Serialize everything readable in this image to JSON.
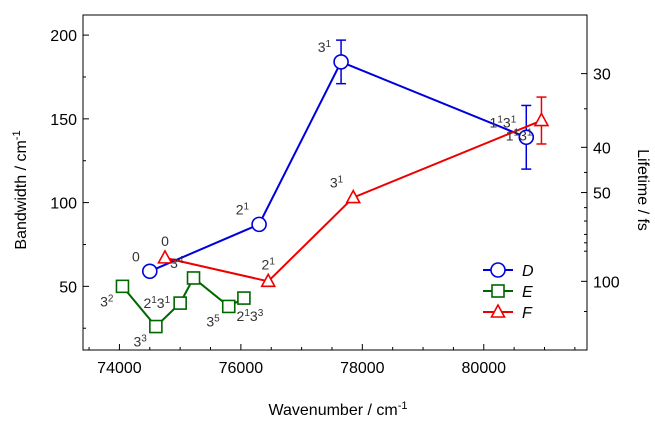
{
  "chart_data": {
    "type": "line",
    "xlabel": "Wavenumber / cm",
    "xlabel_sup": "-1",
    "ylabel": "Bandwidth / cm",
    "ylabel_sup": "-1",
    "y2label": "Lifetime / fs",
    "xlim": [
      73400,
      81700
    ],
    "ylim": [
      12,
      212
    ],
    "x_ticks": [
      74000,
      76000,
      78000,
      80000
    ],
    "x_tick_labels": [
      "74000",
      "76000",
      "78000",
      "80000"
    ],
    "y_ticks": [
      50,
      100,
      150,
      200
    ],
    "y_tick_labels": [
      "50",
      "100",
      "150",
      "200"
    ],
    "y2_ticks": [
      {
        "label": "30",
        "bandwidth": 177
      },
      {
        "label": "40",
        "bandwidth": 133
      },
      {
        "label": "50",
        "bandwidth": 106
      },
      {
        "label": "100",
        "bandwidth": 53
      }
    ],
    "y2_minor_ticks": [
      {
        "bandwidth": 156
      },
      {
        "bandwidth": 118
      },
      {
        "bandwidth": 97
      },
      {
        "bandwidth": 89
      },
      {
        "bandwidth": 81
      },
      {
        "bandwidth": 76
      },
      {
        "bandwidth": 71
      },
      {
        "bandwidth": 35
      }
    ],
    "series": [
      {
        "name": "D",
        "color": "#0000dd",
        "marker": "circle",
        "x": [
          74500,
          76300,
          77650,
          80700
        ],
        "y": [
          59,
          87,
          184,
          139
        ],
        "err": [
          0,
          0,
          13,
          19
        ],
        "labels": [
          {
            "base": "0",
            "sup": "",
            "base2": "",
            "sup2": "",
            "xi": 0,
            "pos": "above-left"
          },
          {
            "base": "2",
            "sup": "1",
            "base2": "",
            "sup2": "",
            "xi": 1,
            "pos": "above-left"
          },
          {
            "base": "3",
            "sup": "1",
            "base2": "",
            "sup2": "",
            "xi": 2,
            "pos": "above-left"
          },
          {
            "base": "1",
            "sup": "1",
            "base2": "3",
            "sup2": "1",
            "xi": 3,
            "pos": "above-left"
          }
        ]
      },
      {
        "name": "E",
        "color": "#006600",
        "marker": "square",
        "x": [
          74050,
          74600,
          75000,
          75220,
          75800,
          76050
        ],
        "y": [
          50,
          26,
          40,
          55,
          38,
          43
        ],
        "err": [
          0,
          0,
          0,
          0,
          0,
          0
        ],
        "labels": [
          {
            "base": "3",
            "sup": "2",
            "base2": "",
            "sup2": "",
            "xi": 0,
            "pos": "below-left"
          },
          {
            "base": "3",
            "sup": "3",
            "base2": "",
            "sup2": "",
            "xi": 1,
            "pos": "below-left"
          },
          {
            "base": "2",
            "sup": "1",
            "base2": "3",
            "sup2": "1",
            "xi": 2,
            "pos": "left"
          },
          {
            "base": "3",
            "sup": "4",
            "base2": "",
            "sup2": "",
            "xi": 3,
            "pos": "above-left"
          },
          {
            "base": "3",
            "sup": "5",
            "base2": "",
            "sup2": "",
            "xi": 4,
            "pos": "below-left"
          },
          {
            "base": "2",
            "sup": "1",
            "base2": "3",
            "sup2": "3",
            "xi": 5,
            "pos": "below"
          }
        ]
      },
      {
        "name": "F",
        "color": "#ee0000",
        "marker": "triangle",
        "x": [
          74750,
          76450,
          77850,
          80950
        ],
        "y": [
          67,
          53,
          103,
          149
        ],
        "err": [
          0,
          0,
          0,
          14
        ],
        "labels": [
          {
            "base": "0",
            "sup": "",
            "base2": "",
            "sup2": "",
            "xi": 0,
            "pos": "above"
          },
          {
            "base": "2",
            "sup": "1",
            "base2": "",
            "sup2": "",
            "xi": 1,
            "pos": "above"
          },
          {
            "base": "3",
            "sup": "1",
            "base2": "",
            "sup2": "",
            "xi": 2,
            "pos": "above-left"
          },
          {
            "base": "1",
            "sup": "1",
            "base2": "3",
            "sup2": "1",
            "xi": 3,
            "pos": "below-left"
          }
        ]
      }
    ],
    "legend": {
      "position": "bottom-right",
      "entries": [
        "D",
        "E",
        "F"
      ]
    }
  }
}
